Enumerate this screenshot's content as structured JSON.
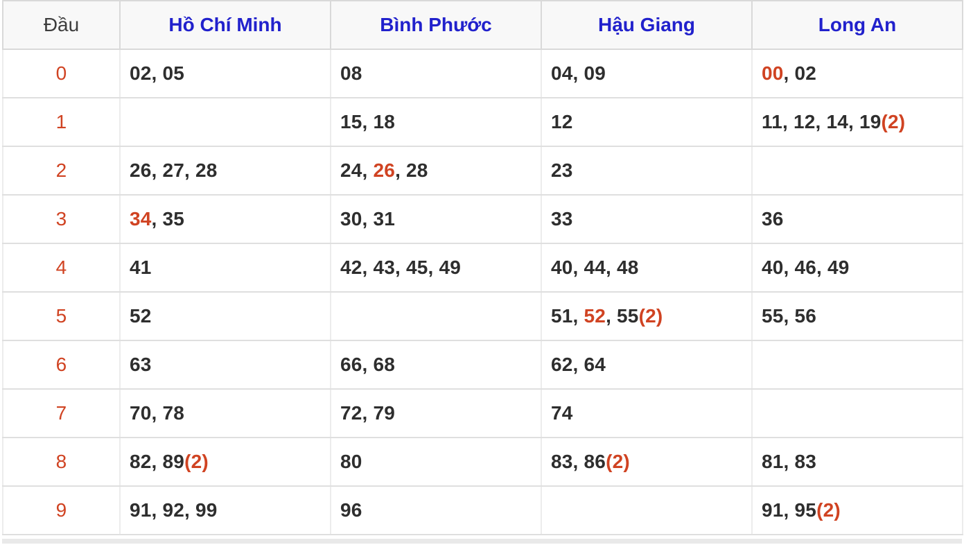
{
  "colors": {
    "header_text_blue": "#2121cc",
    "highlight_red": "#d04322",
    "number_dark": "#2e2e2e",
    "header_bg": "#f8f8f8"
  },
  "table": {
    "columns": [
      {
        "label": "Đầu",
        "type": "digit"
      },
      {
        "label": "Hồ Chí Minh",
        "type": "province"
      },
      {
        "label": "Bình Phước",
        "type": "province"
      },
      {
        "label": "Hậu Giang",
        "type": "province"
      },
      {
        "label": "Long An",
        "type": "province"
      }
    ],
    "rows": [
      {
        "digit": "0",
        "cells": [
          [
            {
              "t": "02, 05",
              "hl": false
            }
          ],
          [
            {
              "t": "08",
              "hl": false
            }
          ],
          [
            {
              "t": "04, 09",
              "hl": false
            }
          ],
          [
            {
              "t": "00",
              "hl": true
            },
            {
              "t": ", 02",
              "hl": false
            }
          ]
        ]
      },
      {
        "digit": "1",
        "cells": [
          [],
          [
            {
              "t": "15, 18",
              "hl": false
            }
          ],
          [
            {
              "t": "12",
              "hl": false
            }
          ],
          [
            {
              "t": "11, 12, 14, 19",
              "hl": false
            },
            {
              "t": "(2)",
              "hl": true
            }
          ]
        ]
      },
      {
        "digit": "2",
        "cells": [
          [
            {
              "t": "26, 27, 28",
              "hl": false
            }
          ],
          [
            {
              "t": "24, ",
              "hl": false
            },
            {
              "t": "26",
              "hl": true
            },
            {
              "t": ", 28",
              "hl": false
            }
          ],
          [
            {
              "t": "23",
              "hl": false
            }
          ],
          []
        ]
      },
      {
        "digit": "3",
        "cells": [
          [
            {
              "t": "34",
              "hl": true
            },
            {
              "t": ", 35",
              "hl": false
            }
          ],
          [
            {
              "t": "30, 31",
              "hl": false
            }
          ],
          [
            {
              "t": "33",
              "hl": false
            }
          ],
          [
            {
              "t": "36",
              "hl": false
            }
          ]
        ]
      },
      {
        "digit": "4",
        "cells": [
          [
            {
              "t": "41",
              "hl": false
            }
          ],
          [
            {
              "t": "42, 43, 45, 49",
              "hl": false
            }
          ],
          [
            {
              "t": "40, 44, 48",
              "hl": false
            }
          ],
          [
            {
              "t": "40, 46, 49",
              "hl": false
            }
          ]
        ]
      },
      {
        "digit": "5",
        "cells": [
          [
            {
              "t": "52",
              "hl": false
            }
          ],
          [],
          [
            {
              "t": "51, ",
              "hl": false
            },
            {
              "t": "52",
              "hl": true
            },
            {
              "t": ", 55",
              "hl": false
            },
            {
              "t": "(2)",
              "hl": true
            }
          ],
          [
            {
              "t": "55, 56",
              "hl": false
            }
          ]
        ]
      },
      {
        "digit": "6",
        "cells": [
          [
            {
              "t": "63",
              "hl": false
            }
          ],
          [
            {
              "t": "66, 68",
              "hl": false
            }
          ],
          [
            {
              "t": "62, 64",
              "hl": false
            }
          ],
          []
        ]
      },
      {
        "digit": "7",
        "cells": [
          [
            {
              "t": "70, 78",
              "hl": false
            }
          ],
          [
            {
              "t": "72, 79",
              "hl": false
            }
          ],
          [
            {
              "t": "74",
              "hl": false
            }
          ],
          []
        ]
      },
      {
        "digit": "8",
        "cells": [
          [
            {
              "t": "82, 89",
              "hl": false
            },
            {
              "t": "(2)",
              "hl": true
            }
          ],
          [
            {
              "t": "80",
              "hl": false
            }
          ],
          [
            {
              "t": "83, 86",
              "hl": false
            },
            {
              "t": "(2)",
              "hl": true
            }
          ],
          [
            {
              "t": "81, 83",
              "hl": false
            }
          ]
        ]
      },
      {
        "digit": "9",
        "cells": [
          [
            {
              "t": "91, 92, 99",
              "hl": false
            }
          ],
          [
            {
              "t": "96",
              "hl": false
            }
          ],
          [],
          [
            {
              "t": "91, 95",
              "hl": false
            },
            {
              "t": "(2)",
              "hl": true
            }
          ]
        ]
      }
    ]
  }
}
